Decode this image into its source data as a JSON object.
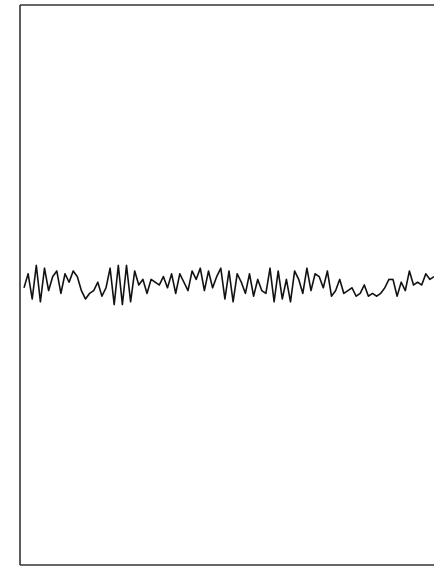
{
  "chart_data": {
    "type": "line",
    "title": "",
    "xlabel": "",
    "ylabel": "",
    "grid": false,
    "legend": "none",
    "frame": "box-open-right",
    "xlim": [
      0,
      200
    ],
    "ylim": [
      -1,
      1
    ],
    "series": [
      {
        "color": "#111111",
        "x": [
          0,
          2,
          4,
          6,
          8,
          10,
          12,
          14,
          16,
          18,
          20,
          22,
          24,
          26,
          28,
          30,
          32,
          34,
          36,
          38,
          40,
          42,
          44,
          46,
          48,
          50,
          52,
          54,
          56,
          58,
          60,
          62,
          64,
          66,
          68,
          70,
          72,
          74,
          76,
          78,
          80,
          82,
          84,
          86,
          88,
          90,
          92,
          94,
          96,
          98,
          100,
          102,
          104,
          106,
          108,
          110,
          112,
          114,
          116,
          118,
          120,
          122,
          124,
          126,
          128,
          130,
          132,
          134,
          136,
          138,
          140,
          142,
          144,
          146,
          148,
          150,
          152,
          154,
          156,
          158,
          160,
          162,
          164,
          166,
          168,
          170,
          172,
          174,
          176,
          178,
          180,
          182,
          184,
          186,
          188,
          190,
          192,
          194,
          196,
          198,
          200
        ],
        "values": [
          -0.01,
          0.04,
          -0.05,
          0.07,
          -0.06,
          0.06,
          -0.02,
          0.03,
          0.05,
          -0.03,
          0.04,
          0.01,
          0.05,
          0.03,
          -0.02,
          -0.05,
          -0.03,
          -0.02,
          0.01,
          -0.04,
          -0.01,
          0.06,
          -0.07,
          0.07,
          -0.07,
          0.07,
          -0.06,
          0.05,
          0.0,
          0.02,
          -0.03,
          0.02,
          0.01,
          0.0,
          0.03,
          -0.01,
          0.04,
          -0.03,
          0.04,
          0.01,
          -0.02,
          0.05,
          0.02,
          0.06,
          -0.02,
          0.05,
          -0.01,
          0.03,
          0.06,
          -0.05,
          0.05,
          -0.06,
          0.04,
          0.01,
          -0.03,
          0.04,
          -0.04,
          0.02,
          -0.02,
          -0.03,
          0.06,
          -0.06,
          0.05,
          -0.05,
          0.02,
          -0.06,
          0.05,
          0.02,
          -0.03,
          0.06,
          -0.02,
          0.04,
          0.03,
          -0.01,
          0.05,
          -0.04,
          -0.02,
          0.02,
          -0.03,
          -0.02,
          -0.01,
          -0.04,
          -0.03,
          0.0,
          -0.04,
          -0.03,
          -0.04,
          -0.03,
          -0.01,
          0.02,
          0.02,
          -0.04,
          0.01,
          -0.02,
          0.05,
          0.0,
          0.01,
          0.0,
          0.04,
          0.02,
          0.03
        ]
      }
    ]
  }
}
